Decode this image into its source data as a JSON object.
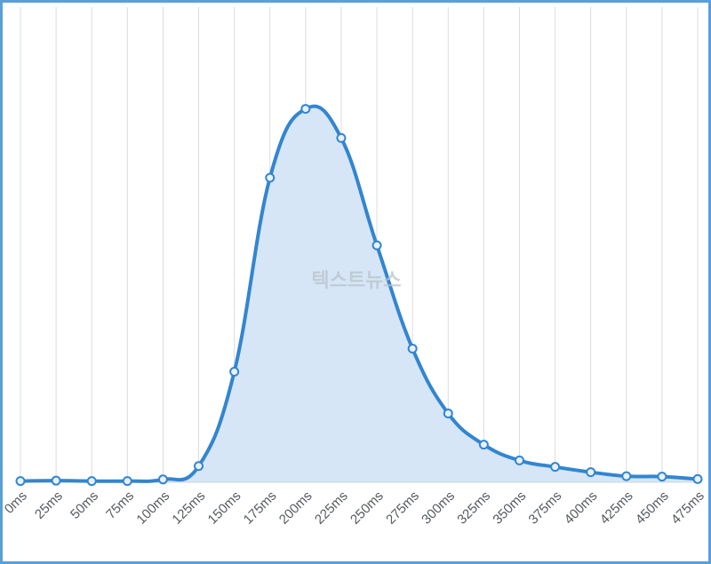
{
  "watermark": "텍스트뉴스",
  "colors": {
    "line": "#3385d0",
    "fill": "#d4e5f6",
    "grid": "#dcdcdc",
    "border": "#5a9fd8",
    "point_fill": "#e8f1fb"
  },
  "chart_data": {
    "type": "area",
    "title": "",
    "xlabel": "",
    "ylabel": "",
    "categories": [
      "0ms",
      "25ms",
      "50ms",
      "75ms",
      "100ms",
      "125ms",
      "150ms",
      "175ms",
      "200ms",
      "225ms",
      "250ms",
      "275ms",
      "300ms",
      "325ms",
      "350ms",
      "375ms",
      "400ms",
      "425ms",
      "450ms",
      "475ms"
    ],
    "values": [
      0.3,
      0.4,
      0.3,
      0.3,
      0.7,
      4.0,
      27.3,
      75.2,
      92.2,
      85.0,
      58.5,
      33.0,
      17.0,
      9.3,
      5.4,
      3.8,
      2.5,
      1.5,
      1.4,
      0.8
    ],
    "ylim": [
      0,
      100
    ],
    "grid": "vertical",
    "legend": "none",
    "smooth": true
  }
}
